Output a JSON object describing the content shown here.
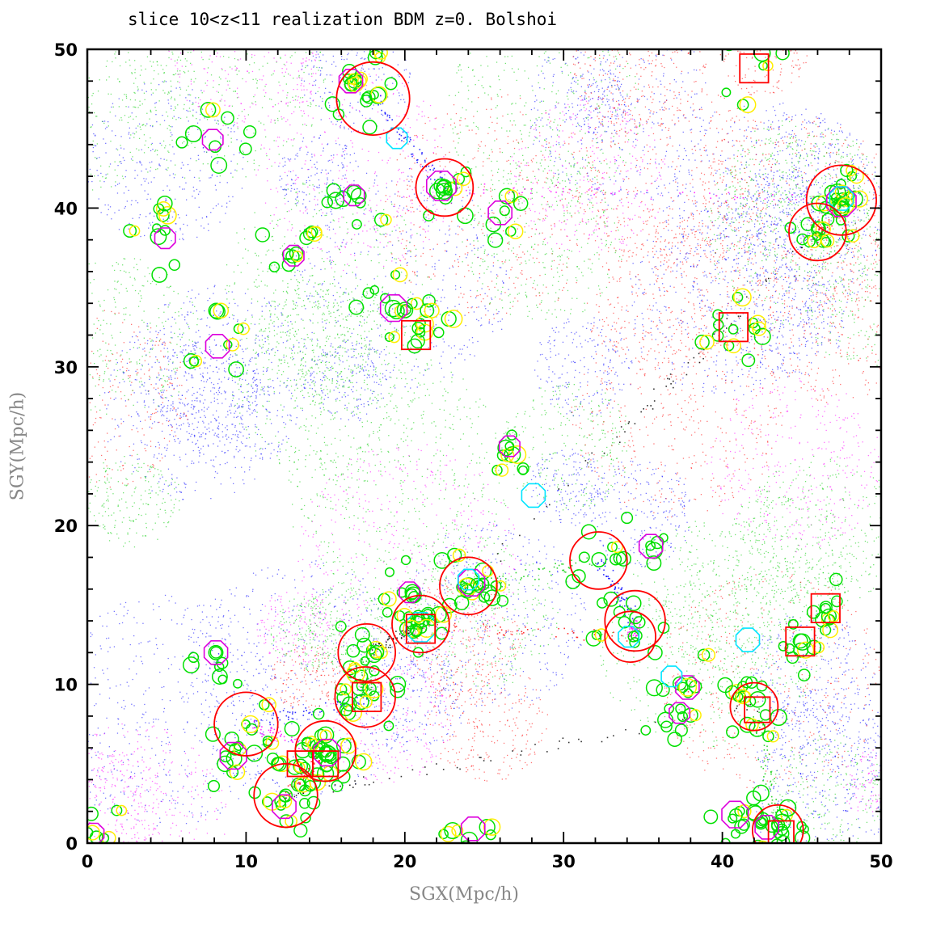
{
  "chart_data": {
    "type": "scatter",
    "title": "slice 10<z<11 realization BDM z=0. Bolshoi",
    "xlabel": "SGX(Mpc/h)",
    "ylabel": "SGY(Mpc/h)",
    "xlim": [
      0,
      50
    ],
    "ylim": [
      0,
      50
    ],
    "xticks": [
      "0",
      "10",
      "20",
      "30",
      "40",
      "50"
    ],
    "yticks": [
      "0",
      "10",
      "20",
      "30",
      "40",
      "50"
    ],
    "grid": false,
    "legend": "none",
    "colors": {
      "particles": [
        "#0000ff",
        "#ff0000",
        "#00cc00",
        "#ff00ff",
        "#000000"
      ],
      "green_circle": "#00e000",
      "yellow_circle": "#ffee00",
      "magenta_octagon": "#dd00dd",
      "cyan_octagon": "#00e5ff",
      "red_square": "#ff0000",
      "red_big_circle": "#ff0000"
    },
    "large_red_circles": [
      {
        "x": 18.0,
        "y": 46.9,
        "r": 2.3
      },
      {
        "x": 22.5,
        "y": 41.3,
        "r": 1.8
      },
      {
        "x": 47.5,
        "y": 40.5,
        "r": 2.2
      },
      {
        "x": 46.0,
        "y": 38.5,
        "r": 1.8
      },
      {
        "x": 24.0,
        "y": 16.2,
        "r": 1.8
      },
      {
        "x": 32.2,
        "y": 17.8,
        "r": 1.8
      },
      {
        "x": 34.5,
        "y": 14.0,
        "r": 1.9
      },
      {
        "x": 34.2,
        "y": 13.0,
        "r": 1.6
      },
      {
        "x": 21.0,
        "y": 13.8,
        "r": 1.8
      },
      {
        "x": 17.6,
        "y": 12.0,
        "r": 1.8
      },
      {
        "x": 17.5,
        "y": 9.2,
        "r": 1.9
      },
      {
        "x": 10.0,
        "y": 7.5,
        "r": 2.0
      },
      {
        "x": 15.0,
        "y": 5.8,
        "r": 1.9
      },
      {
        "x": 12.5,
        "y": 3.0,
        "r": 2.0
      },
      {
        "x": 42.0,
        "y": 8.6,
        "r": 1.5
      },
      {
        "x": 43.5,
        "y": 0.8,
        "r": 1.6
      }
    ],
    "red_squares": [
      {
        "x": 42.0,
        "y": 48.8,
        "s": 1.8
      },
      {
        "x": 20.7,
        "y": 32.0,
        "s": 1.8
      },
      {
        "x": 40.7,
        "y": 32.5,
        "s": 1.8
      },
      {
        "x": 21.0,
        "y": 13.5,
        "s": 1.8
      },
      {
        "x": 17.6,
        "y": 9.2,
        "s": 1.8
      },
      {
        "x": 13.4,
        "y": 5.0,
        "s": 1.6
      },
      {
        "x": 15.0,
        "y": 5.0,
        "s": 1.6
      },
      {
        "x": 44.9,
        "y": 12.7,
        "s": 1.8
      },
      {
        "x": 46.5,
        "y": 14.8,
        "s": 1.8
      },
      {
        "x": 42.2,
        "y": 8.4,
        "s": 1.6
      },
      {
        "x": 43.7,
        "y": 0.6,
        "s": 1.6
      }
    ],
    "magenta_octagons": [
      {
        "x": 7.9,
        "y": 44.3,
        "r": 0.7
      },
      {
        "x": 16.6,
        "y": 48.0,
        "r": 0.8
      },
      {
        "x": 22.3,
        "y": 41.4,
        "r": 1.0
      },
      {
        "x": 26.0,
        "y": 39.7,
        "r": 0.8
      },
      {
        "x": 16.8,
        "y": 40.8,
        "r": 0.7
      },
      {
        "x": 4.9,
        "y": 38.1,
        "r": 0.7
      },
      {
        "x": 13.0,
        "y": 37.0,
        "r": 0.7
      },
      {
        "x": 19.3,
        "y": 33.7,
        "r": 0.9
      },
      {
        "x": 8.2,
        "y": 31.3,
        "r": 0.8
      },
      {
        "x": 47.5,
        "y": 40.4,
        "r": 1.0
      },
      {
        "x": 26.6,
        "y": 25.0,
        "r": 0.7
      },
      {
        "x": 24.2,
        "y": 16.4,
        "r": 0.9
      },
      {
        "x": 20.3,
        "y": 15.8,
        "r": 0.7
      },
      {
        "x": 35.5,
        "y": 18.7,
        "r": 0.8
      },
      {
        "x": 8.1,
        "y": 12.0,
        "r": 0.8
      },
      {
        "x": 37.8,
        "y": 9.8,
        "r": 0.8
      },
      {
        "x": 37.3,
        "y": 8.2,
        "r": 0.7
      },
      {
        "x": 9.2,
        "y": 5.5,
        "r": 0.9
      },
      {
        "x": 15.1,
        "y": 5.7,
        "r": 0.9
      },
      {
        "x": 12.4,
        "y": 2.3,
        "r": 0.8
      },
      {
        "x": 24.3,
        "y": 0.9,
        "r": 0.8
      },
      {
        "x": 40.8,
        "y": 1.8,
        "r": 0.9
      },
      {
        "x": 42.8,
        "y": 1.0,
        "r": 0.8
      },
      {
        "x": 0.4,
        "y": 0.6,
        "r": 0.7
      }
    ],
    "cyan_octagons": [
      {
        "x": 19.5,
        "y": 44.4,
        "r": 0.7
      },
      {
        "x": 28.1,
        "y": 21.9,
        "r": 0.8
      },
      {
        "x": 21.0,
        "y": 13.6,
        "r": 1.0
      },
      {
        "x": 24.0,
        "y": 16.6,
        "r": 0.7
      },
      {
        "x": 41.6,
        "y": 12.8,
        "r": 0.8
      },
      {
        "x": 34.1,
        "y": 13.0,
        "r": 0.7
      },
      {
        "x": 36.8,
        "y": 10.5,
        "r": 0.7
      },
      {
        "x": 47.5,
        "y": 40.6,
        "r": 0.8
      }
    ]
  }
}
